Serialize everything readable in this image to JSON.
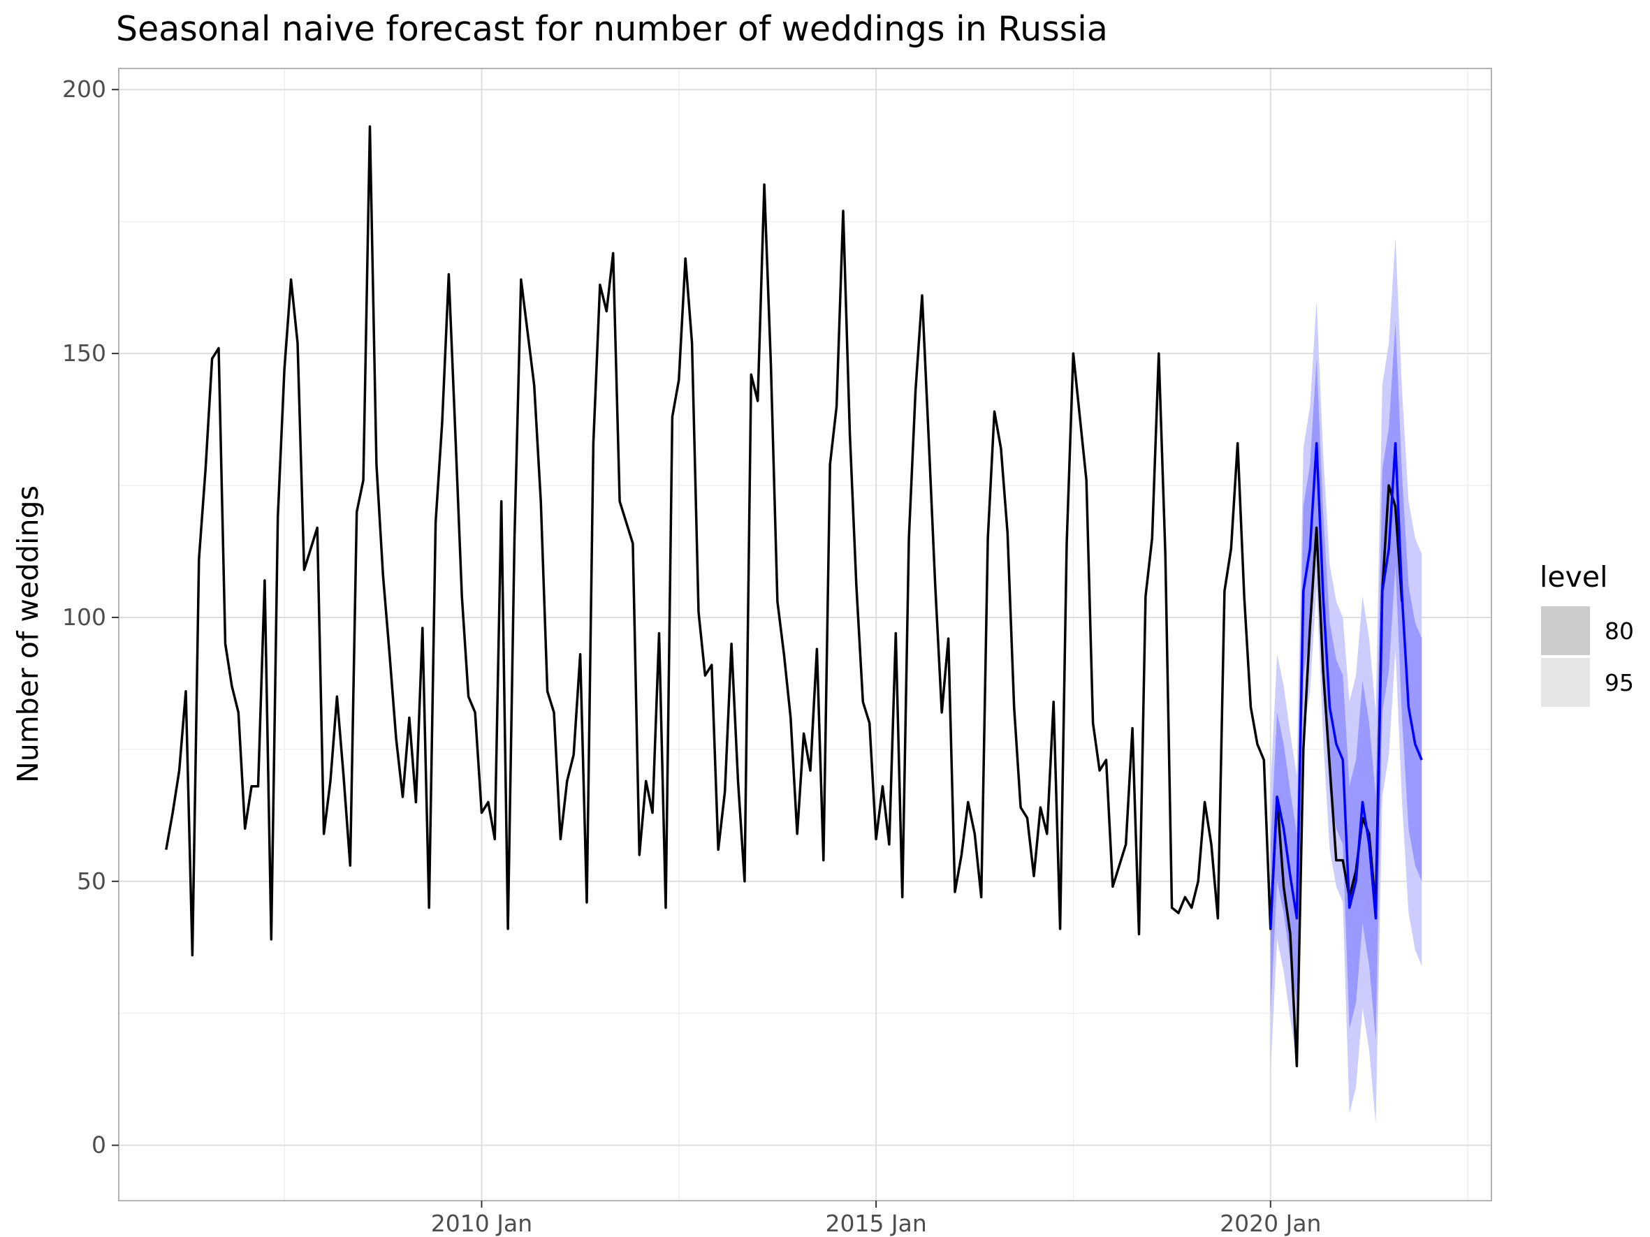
{
  "chart_data": {
    "type": "line",
    "title": "Seasonal naive forecast for number of weddings in Russia",
    "xlabel": "",
    "ylabel": "Number of weddings",
    "ylim": [
      -10.5,
      204
    ],
    "y_ticks": [
      0,
      50,
      100,
      150,
      200
    ],
    "x_range": [
      2005.4,
      2022.8
    ],
    "x_ticks": [
      {
        "value": 2010.0,
        "label": "2010 Jan"
      },
      {
        "value": 2015.0,
        "label": "2015 Jan"
      },
      {
        "value": 2020.0,
        "label": "2020 Jan"
      }
    ],
    "x_minor": [
      2007.5,
      2012.5,
      2017.5,
      2022.5
    ],
    "y_minor": [
      25,
      75,
      125,
      175
    ],
    "grid": true,
    "legend": {
      "title": "level",
      "position": "right",
      "entries": [
        {
          "label": "80",
          "color": "#cccccc"
        },
        {
          "label": "95",
          "color": "#e5e5e5"
        }
      ]
    },
    "colors": {
      "observed": "#000000",
      "forecast": "#0000ff",
      "band80": "#9999ff",
      "band95": "#ccccff",
      "panel_border": "#b3b3b3",
      "grid_major": "#dedede",
      "grid_minor": "#efefef"
    },
    "series": [
      {
        "name": "Observed",
        "start": 2006.0,
        "step": 0.08333,
        "values": [
          56,
          63,
          71,
          86,
          36,
          111,
          128,
          149,
          151,
          95,
          87,
          82,
          60,
          68,
          68,
          107,
          39,
          119,
          147,
          164,
          152,
          109,
          113,
          117,
          59,
          69,
          85,
          70,
          53,
          120,
          126,
          193,
          129,
          108,
          93,
          77,
          66,
          81,
          65,
          98,
          45,
          118,
          137,
          165,
          135,
          104,
          85,
          82,
          63,
          65,
          58,
          122,
          41,
          115,
          164,
          154,
          144,
          122,
          86,
          82,
          58,
          69,
          74,
          93,
          46,
          133,
          163,
          158,
          169,
          122,
          118,
          114,
          55,
          69,
          63,
          97,
          45,
          138,
          145,
          168,
          152,
          101,
          89,
          91,
          56,
          67,
          95,
          69,
          50,
          146,
          141,
          182,
          148,
          103,
          93,
          81,
          59,
          78,
          71,
          94,
          54,
          129,
          140,
          177,
          135,
          106,
          84,
          80,
          58,
          68,
          57,
          97,
          47,
          115,
          143,
          161,
          134,
          106,
          82,
          96,
          48,
          55,
          65,
          59,
          47,
          115,
          139,
          132,
          116,
          83,
          64,
          62,
          51,
          64,
          59,
          84,
          41,
          114,
          150,
          138,
          126,
          80,
          71,
          73,
          49,
          53,
          57,
          79,
          40,
          104,
          115,
          150,
          112,
          45,
          44,
          47,
          45,
          50,
          65,
          57,
          43,
          105,
          113,
          133,
          104,
          83,
          76,
          73,
          41,
          66,
          49,
          40,
          15,
          75,
          98,
          117,
          90,
          72,
          54,
          54,
          47,
          52,
          62,
          59,
          45,
          105,
          125,
          121,
          103
        ]
      }
    ],
    "forecast": {
      "start": 2020.0,
      "step": 0.08333,
      "mean": [
        41,
        66,
        60,
        51,
        43,
        105,
        113,
        133,
        104,
        83,
        76,
        73,
        45,
        50,
        65,
        57,
        43,
        105,
        113,
        133,
        104,
        83,
        76,
        73
      ],
      "lo80": [
        25,
        50,
        44,
        35,
        27,
        89,
        97,
        117,
        88,
        67,
        60,
        57,
        22,
        27,
        42,
        34,
        20,
        82,
        90,
        110,
        81,
        60,
        53,
        50
      ],
      "hi80": [
        57,
        82,
        76,
        67,
        59,
        121,
        129,
        149,
        120,
        99,
        92,
        89,
        68,
        73,
        88,
        80,
        66,
        128,
        136,
        156,
        127,
        106,
        99,
        96
      ],
      "lo95": [
        14,
        39,
        33,
        24,
        16,
        78,
        86,
        106,
        77,
        56,
        49,
        46,
        6,
        11,
        26,
        18,
        4,
        66,
        74,
        94,
        65,
        44,
        37,
        34
      ],
      "hi95": [
        68,
        93,
        87,
        78,
        70,
        132,
        140,
        160,
        131,
        110,
        103,
        100,
        84,
        89,
        104,
        96,
        82,
        144,
        152,
        172,
        143,
        122,
        115,
        112
      ]
    }
  }
}
